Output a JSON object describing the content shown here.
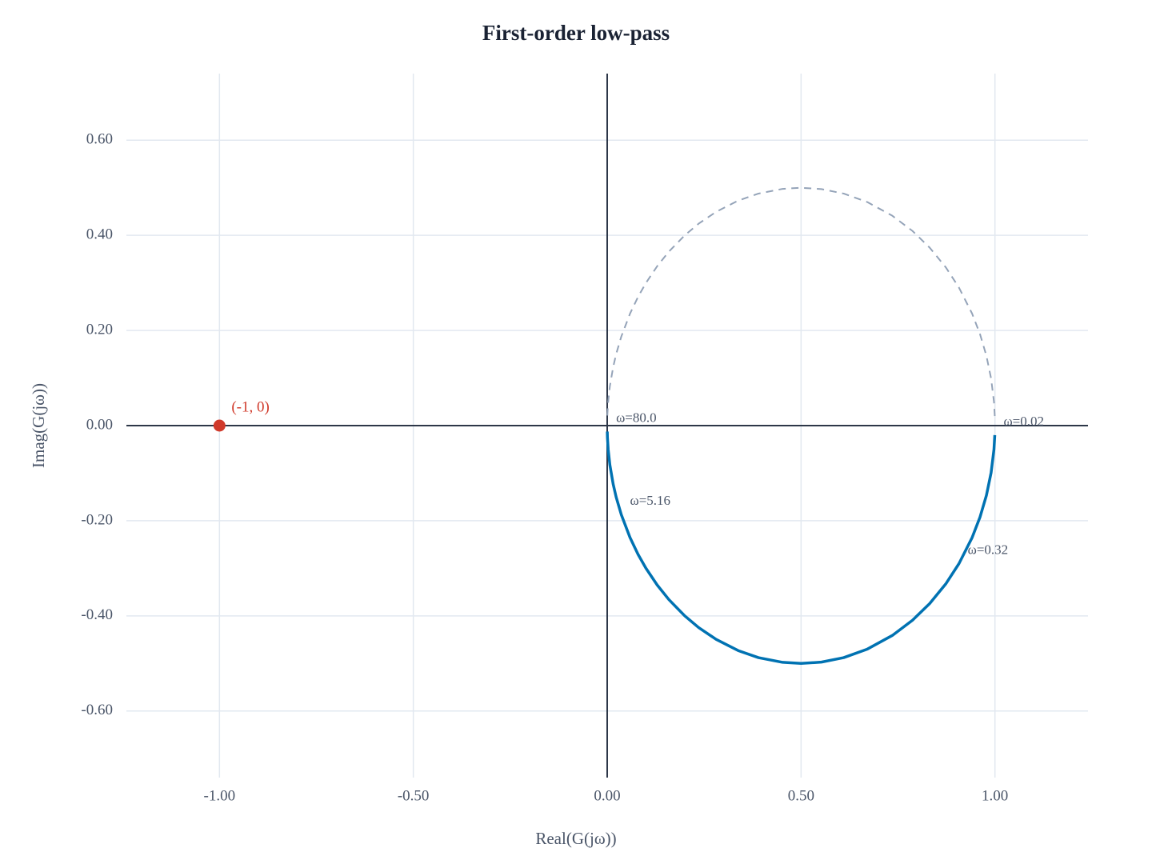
{
  "chart_data": {
    "type": "nyquist",
    "title": "First-order low-pass",
    "x_label": "Real(G(jω))",
    "y_label": "Imag(G(jω))",
    "xlim": [
      -1.24,
      1.24
    ],
    "ylim": [
      -0.74,
      0.74
    ],
    "xticks": [
      {
        "value": -1,
        "label": "-1.00"
      },
      {
        "value": -0.5,
        "label": "-0.50"
      },
      {
        "value": 0,
        "label": "0.00"
      },
      {
        "value": 0.5,
        "label": "0.50"
      },
      {
        "value": 1,
        "label": "1.00"
      }
    ],
    "yticks": [
      {
        "value": -0.6,
        "label": "-0.60"
      },
      {
        "value": -0.4,
        "label": "-0.40"
      },
      {
        "value": -0.2,
        "label": "-0.20"
      },
      {
        "value": 0,
        "label": "0.00"
      },
      {
        "value": 0.2,
        "label": "0.20"
      },
      {
        "value": 0.4,
        "label": "0.40"
      },
      {
        "value": 0.6,
        "label": "0.60"
      }
    ],
    "grid": true,
    "series": [
      {
        "color": "#0072b2",
        "dash": false,
        "x": [
          0.9996,
          0.9975,
          0.9901,
          0.978,
          0.9615,
          0.9412,
          0.9071,
          0.8738,
          0.8316,
          0.7872,
          0.7353,
          0.6711,
          0.6098,
          0.5525,
          0.5,
          0.4525,
          0.3902,
          0.3378,
          0.2809,
          0.2358,
          0.2,
          0.159,
          0.1289,
          0.1,
          0.0796,
          0.0588,
          0.0362,
          0.0231,
          0.0154,
          0.0069,
          0.0025,
          0.0006,
          0.0002
        ],
        "values": [
          -0.02,
          -0.0499,
          -0.099,
          -0.1467,
          -0.1923,
          -0.2353,
          -0.2903,
          -0.3321,
          -0.3742,
          -0.4093,
          -0.4412,
          -0.4698,
          -0.4878,
          -0.4972,
          -0.5,
          -0.4977,
          -0.4878,
          -0.473,
          -0.4494,
          -0.4245,
          -0.4,
          -0.3657,
          -0.3351,
          -0.3,
          -0.2707,
          -0.2353,
          -0.1868,
          -0.1503,
          -0.1231,
          -0.0828,
          -0.0499,
          -0.025,
          -0.0125
        ]
      },
      {
        "color": "#94a3b8",
        "dash": true,
        "x": [
          0.9996,
          0.9975,
          0.9901,
          0.978,
          0.9615,
          0.9412,
          0.9071,
          0.8738,
          0.8316,
          0.7872,
          0.7353,
          0.6711,
          0.6098,
          0.5525,
          0.5,
          0.4525,
          0.3902,
          0.3378,
          0.2809,
          0.2358,
          0.2,
          0.159,
          0.1289,
          0.1,
          0.0796,
          0.0588,
          0.0362,
          0.0231,
          0.0154,
          0.0069,
          0.0025,
          0.0006,
          0.0002
        ],
        "values": [
          0.02,
          0.0499,
          0.099,
          0.1467,
          0.1923,
          0.2353,
          0.2903,
          0.3321,
          0.3742,
          0.4093,
          0.4412,
          0.4698,
          0.4878,
          0.4972,
          0.5,
          0.4977,
          0.4878,
          0.473,
          0.4494,
          0.4245,
          0.4,
          0.3657,
          0.3351,
          0.3,
          0.2707,
          0.2353,
          0.1868,
          0.1503,
          0.1231,
          0.0828,
          0.0499,
          0.025,
          0.0125
        ]
      }
    ],
    "critical_point": {
      "x": -1,
      "y": 0,
      "label": "(-1, 0)",
      "color": "#d03a2b"
    },
    "annotations": [
      {
        "text": "ω=80.0",
        "x": 0.0002,
        "y": -0.0125
      },
      {
        "text": "ω=0.02",
        "x": 0.9996,
        "y": -0.02
      },
      {
        "text": "ω=5.16",
        "x": 0.0362,
        "y": -0.1868
      },
      {
        "text": "ω=0.32",
        "x": 0.9071,
        "y": -0.2903
      }
    ]
  }
}
